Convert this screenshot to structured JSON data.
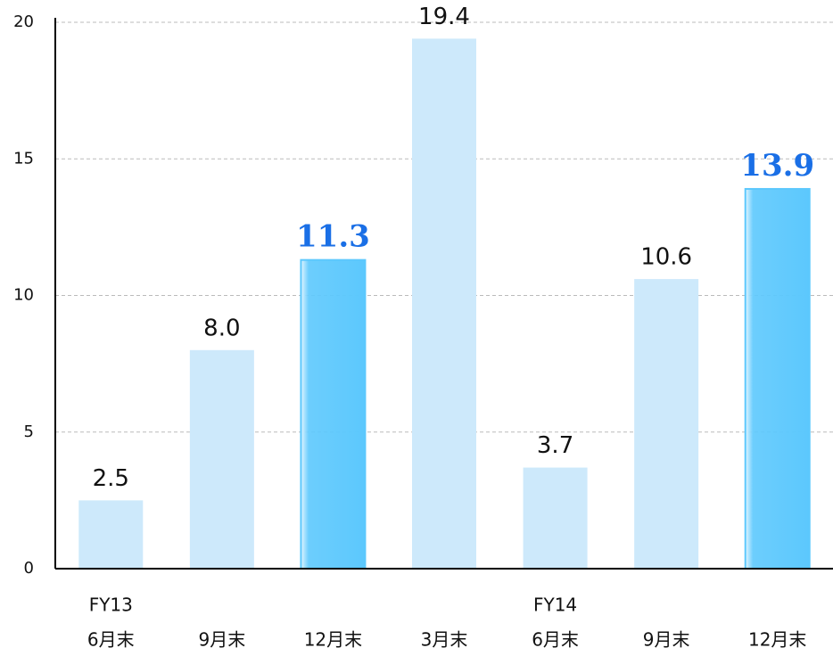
{
  "chart_data": {
    "type": "bar",
    "group_labels": [
      "FY13",
      null,
      null,
      null,
      "FY14",
      null,
      null
    ],
    "categories": [
      "6月末",
      "9月末",
      "12月末",
      "3月末",
      "6月末",
      "9月末",
      "12月末"
    ],
    "values": [
      2.5,
      8.0,
      11.3,
      19.4,
      3.7,
      10.6,
      13.9
    ],
    "value_labels": [
      "2.5",
      "8.0",
      "11.3",
      "19.4",
      "3.7",
      "10.6",
      "13.9"
    ],
    "highlight": [
      false,
      false,
      true,
      false,
      false,
      false,
      true
    ],
    "color": "#cde9fb",
    "highlight_color": "#5cc8fd",
    "highlight_label_color": "#1a6fe6",
    "ylim": [
      0,
      20
    ],
    "yticks": [
      0,
      5,
      10,
      15,
      20
    ],
    "grid": true
  }
}
